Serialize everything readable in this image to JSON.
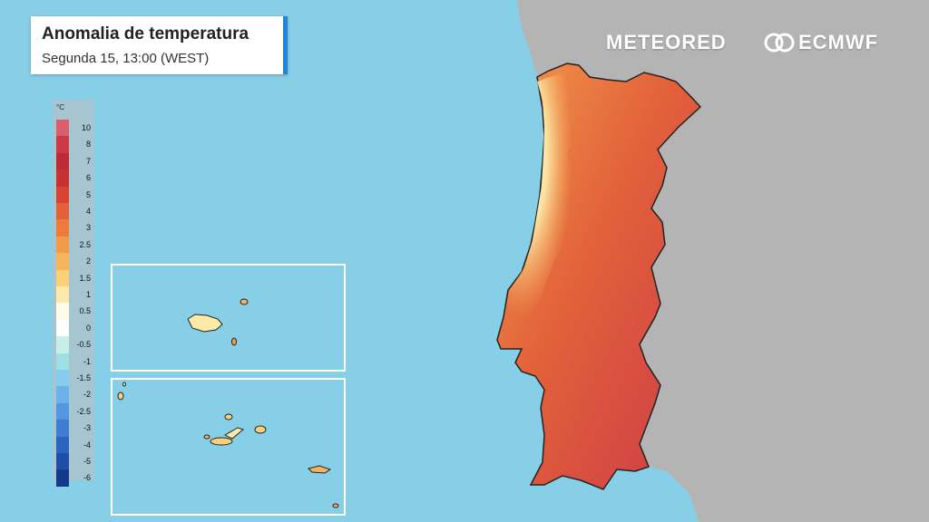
{
  "header": {
    "title": "Anomalia de temperatura",
    "subtitle": "Segunda 15, 13:00 (WEST)"
  },
  "brands": {
    "meteored": "METEORED",
    "ecmwf": "ECMWF"
  },
  "legend": {
    "unit": "°C",
    "items": [
      {
        "label": "10",
        "color": "#d8606e"
      },
      {
        "label": "8",
        "color": "#cc3a48"
      },
      {
        "label": "7",
        "color": "#bb2a36"
      },
      {
        "label": "6",
        "color": "#c63132"
      },
      {
        "label": "5",
        "color": "#d84332"
      },
      {
        "label": "4",
        "color": "#e2613a"
      },
      {
        "label": "3",
        "color": "#ec7b3d"
      },
      {
        "label": "2.5",
        "color": "#f29a4c"
      },
      {
        "label": "2",
        "color": "#f7b45e"
      },
      {
        "label": "1.5",
        "color": "#fcd07a"
      },
      {
        "label": "1",
        "color": "#fde9a8"
      },
      {
        "label": "0.5",
        "color": "#fffbe8"
      },
      {
        "label": "0",
        "color": "#ffffff"
      },
      {
        "label": "-0.5",
        "color": "#c7efea"
      },
      {
        "label": "-1",
        "color": "#9fe0e4"
      },
      {
        "label": "-1.5",
        "color": "#88cbee"
      },
      {
        "label": "-2",
        "color": "#6cb2ea"
      },
      {
        "label": "-2.5",
        "color": "#5597df"
      },
      {
        "label": "-3",
        "color": "#3e7dd0"
      },
      {
        "label": "-4",
        "color": "#2c63bc"
      },
      {
        "label": "-5",
        "color": "#1e4ea6"
      },
      {
        "label": "-6",
        "color": "#15398a"
      }
    ]
  },
  "colors": {
    "ocean": "#87cfe6",
    "land": "#b4b4b4",
    "inset_border": "#ffffff"
  }
}
